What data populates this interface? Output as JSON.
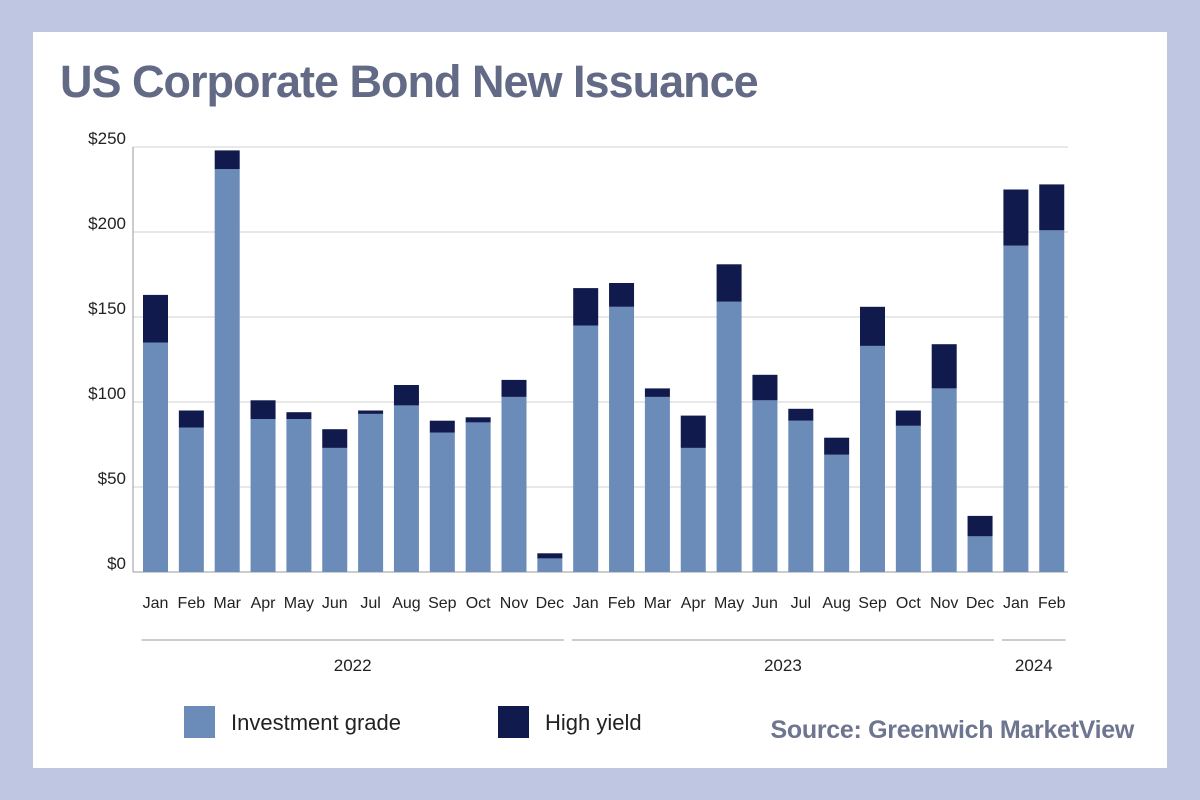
{
  "title": "US Corporate Bond New Issuance",
  "source": "Source: Greenwich MarketView",
  "colors": {
    "investment_grade": "#6b8cb8",
    "high_yield": "#111a4d",
    "grid": "#d0d0d0",
    "background": "#bfc6e2",
    "title": "#636a86"
  },
  "chart_data": {
    "type": "bar",
    "stacked": true,
    "y_ticks": [
      "$250",
      "$200",
      "$150",
      "$100",
      "$50",
      "$0"
    ],
    "ylim": [
      0,
      250
    ],
    "grid": true,
    "legend_position": "bottom",
    "categories": [
      "Jan",
      "Feb",
      "Mar",
      "Apr",
      "May",
      "Jun",
      "Jul",
      "Aug",
      "Sep",
      "Oct",
      "Nov",
      "Dec",
      "Jan",
      "Feb",
      "Mar",
      "Apr",
      "May",
      "Jun",
      "Jul",
      "Aug",
      "Sep",
      "Oct",
      "Nov",
      "Dec",
      "Jan",
      "Feb"
    ],
    "year_groups": [
      {
        "label": "2022",
        "count": 12
      },
      {
        "label": "2023",
        "count": 12
      },
      {
        "label": "2024",
        "count": 2
      }
    ],
    "series": [
      {
        "name": "Investment grade",
        "values": [
          135,
          85,
          237,
          90,
          90,
          73,
          93,
          98,
          82,
          88,
          103,
          8,
          145,
          156,
          103,
          73,
          159,
          101,
          89,
          69,
          133,
          86,
          108,
          21,
          192,
          201
        ]
      },
      {
        "name": "High yield",
        "values": [
          28,
          10,
          11,
          11,
          4,
          11,
          2,
          12,
          7,
          3,
          10,
          3,
          22,
          14,
          5,
          19,
          22,
          15,
          7,
          10,
          23,
          9,
          26,
          12,
          33,
          27
        ]
      }
    ]
  }
}
